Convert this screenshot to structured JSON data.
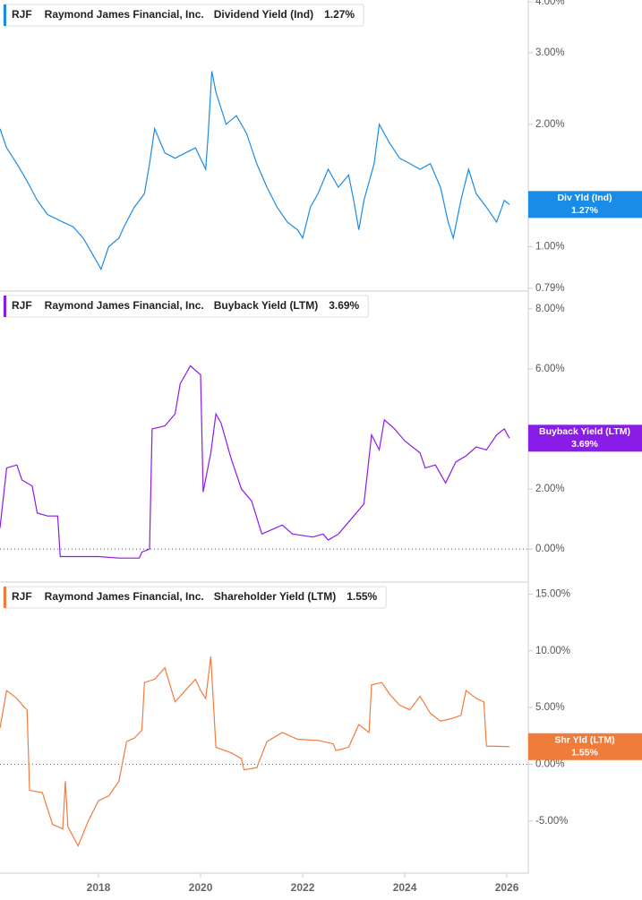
{
  "chart_data": [
    {
      "type": "line",
      "ticker": "RJF",
      "company": "Raymond James Financial, Inc.",
      "log_scale": true,
      "xlim": [
        2016.07,
        2026.42
      ],
      "ylim": [
        0.79,
        4.0
      ],
      "yticks": [
        {
          "value": 4,
          "label": "4.00%"
        },
        {
          "value": 3,
          "label": "3.00%"
        },
        {
          "value": 2,
          "label": "2.00%"
        },
        {
          "value": 1,
          "label": "1.00%"
        },
        {
          "value": 0.79,
          "label": "0.79%"
        }
      ],
      "x": [
        2016.07,
        2016.2,
        2016.4,
        2016.6,
        2016.8,
        2017.0,
        2017.3,
        2017.5,
        2017.7,
        2017.9,
        2018.05,
        2018.2,
        2018.4,
        2018.5,
        2018.7,
        2018.9,
        2019.0,
        2019.1,
        2019.3,
        2019.5,
        2019.7,
        2019.9,
        2020.1,
        2020.15,
        2020.22,
        2020.3,
        2020.5,
        2020.7,
        2020.9,
        2021.1,
        2021.3,
        2021.5,
        2021.7,
        2021.9,
        2022.0,
        2022.15,
        2022.3,
        2022.5,
        2022.7,
        2022.9,
        2023.0,
        2023.1,
        2023.2,
        2023.4,
        2023.5,
        2023.7,
        2023.9,
        2024.1,
        2024.3,
        2024.5,
        2024.7,
        2024.85,
        2024.95,
        2025.1,
        2025.25,
        2025.4,
        2025.6,
        2025.8,
        2025.95,
        2026.05
      ],
      "series": [
        {
          "name": "Dividend Yield (Ind)",
          "short_name": "Div Yld (Ind)",
          "color": "#1a8ce8",
          "values": [
            1.95,
            1.75,
            1.6,
            1.45,
            1.3,
            1.2,
            1.15,
            1.12,
            1.05,
            0.95,
            0.88,
            1.0,
            1.05,
            1.12,
            1.25,
            1.35,
            1.6,
            1.95,
            1.7,
            1.65,
            1.7,
            1.75,
            1.55,
            1.9,
            2.7,
            2.4,
            2.0,
            2.1,
            1.9,
            1.6,
            1.4,
            1.25,
            1.15,
            1.1,
            1.05,
            1.25,
            1.35,
            1.55,
            1.4,
            1.5,
            1.3,
            1.1,
            1.3,
            1.6,
            2.0,
            1.8,
            1.65,
            1.6,
            1.55,
            1.6,
            1.4,
            1.15,
            1.05,
            1.3,
            1.55,
            1.35,
            1.25,
            1.15,
            1.3,
            1.27
          ],
          "last_value": 1.27,
          "last_label": "1.27%"
        }
      ]
    },
    {
      "type": "line",
      "ticker": "RJF",
      "company": "Raymond James Financial, Inc.",
      "zero_line": true,
      "xlim": [
        2016.07,
        2026.42
      ],
      "ylim": [
        -1.1,
        8.5
      ],
      "yticks": [
        {
          "value": 8,
          "label": "8.00%"
        },
        {
          "value": 6,
          "label": "6.00%"
        },
        {
          "value": 2,
          "label": "2.00%"
        },
        {
          "value": 0,
          "label": "0.00%"
        }
      ],
      "x": [
        2016.07,
        2016.2,
        2016.4,
        2016.5,
        2016.7,
        2016.8,
        2017.0,
        2017.2,
        2017.25,
        2017.8,
        2018.0,
        2018.4,
        2018.8,
        2018.85,
        2019.0,
        2019.05,
        2019.3,
        2019.5,
        2019.6,
        2019.8,
        2020.0,
        2020.05,
        2020.2,
        2020.3,
        2020.4,
        2020.6,
        2020.8,
        2021.0,
        2021.2,
        2021.6,
        2021.8,
        2022.2,
        2022.4,
        2022.5,
        2022.7,
        2022.95,
        2023.2,
        2023.35,
        2023.5,
        2023.6,
        2023.8,
        2024.0,
        2024.3,
        2024.4,
        2024.6,
        2024.8,
        2025.0,
        2025.2,
        2025.4,
        2025.6,
        2025.8,
        2025.95,
        2026.05
      ],
      "series": [
        {
          "name": "Buyback Yield (LTM)",
          "short_name": "Buyback Yield (LTM)",
          "color": "#8a1ce8",
          "values": [
            0.7,
            2.7,
            2.8,
            2.3,
            2.1,
            1.2,
            1.1,
            1.1,
            -0.25,
            -0.25,
            -0.25,
            -0.3,
            -0.3,
            -0.1,
            0.0,
            4.0,
            4.1,
            4.5,
            5.5,
            6.1,
            5.8,
            1.9,
            3.2,
            4.5,
            4.2,
            3.0,
            2.0,
            1.6,
            0.5,
            0.8,
            0.5,
            0.4,
            0.5,
            0.3,
            0.5,
            1.0,
            1.5,
            3.8,
            3.3,
            4.3,
            4.0,
            3.6,
            3.2,
            2.7,
            2.8,
            2.2,
            2.9,
            3.1,
            3.4,
            3.3,
            3.8,
            4.0,
            3.69
          ],
          "last_value": 3.69,
          "last_label": "3.69%"
        }
      ]
    },
    {
      "type": "line",
      "ticker": "RJF",
      "company": "Raymond James Financial, Inc.",
      "zero_line": true,
      "xlim": [
        2016.07,
        2026.42
      ],
      "xticks": [
        2018,
        2020,
        2022,
        2024,
        2026
      ],
      "ylim": [
        -9.6,
        15.9
      ],
      "yticks": [
        {
          "value": 15,
          "label": "15.00%"
        },
        {
          "value": 10,
          "label": "10.00%"
        },
        {
          "value": 5,
          "label": "5.00%"
        },
        {
          "value": 0,
          "label": "0.00%"
        },
        {
          "value": -5,
          "label": "-5.00%"
        }
      ],
      "x": [
        2016.07,
        2016.2,
        2016.4,
        2016.55,
        2016.6,
        2016.65,
        2016.9,
        2017.1,
        2017.3,
        2017.35,
        2017.4,
        2017.6,
        2017.8,
        2018.0,
        2018.2,
        2018.4,
        2018.55,
        2018.7,
        2018.85,
        2018.9,
        2019.1,
        2019.3,
        2019.5,
        2019.7,
        2019.9,
        2020.0,
        2020.1,
        2020.2,
        2020.3,
        2020.6,
        2020.8,
        2020.85,
        2021.1,
        2021.3,
        2021.6,
        2021.9,
        2022.3,
        2022.6,
        2022.65,
        2022.9,
        2023.1,
        2023.3,
        2023.35,
        2023.55,
        2023.7,
        2023.9,
        2024.1,
        2024.3,
        2024.5,
        2024.7,
        2024.9,
        2025.1,
        2025.2,
        2025.4,
        2025.55,
        2025.6,
        2026.05
      ],
      "series": [
        {
          "name": "Shareholder Yield (LTM)",
          "short_name": "Shr Yld (LTM)",
          "color": "#f07c3c",
          "values": [
            3.2,
            6.5,
            5.8,
            5.0,
            4.8,
            -2.3,
            -2.5,
            -5.3,
            -5.7,
            -1.5,
            -5.5,
            -7.2,
            -5.0,
            -3.2,
            -2.8,
            -1.5,
            2.0,
            2.3,
            3.0,
            7.2,
            7.5,
            8.5,
            5.5,
            6.5,
            7.5,
            6.5,
            5.8,
            9.5,
            1.5,
            1.0,
            0.5,
            -0.5,
            -0.3,
            2.0,
            2.8,
            2.2,
            2.1,
            1.8,
            1.2,
            1.5,
            3.5,
            2.8,
            7.0,
            7.2,
            6.2,
            5.2,
            4.8,
            6.0,
            4.5,
            3.8,
            4.0,
            4.3,
            6.5,
            5.8,
            5.5,
            1.6,
            1.55
          ],
          "last_value": 1.55,
          "last_label": "1.55%"
        }
      ]
    }
  ]
}
